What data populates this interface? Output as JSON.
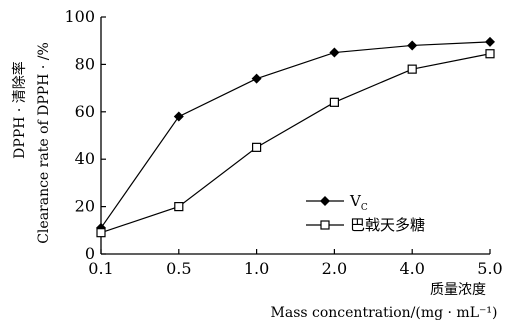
{
  "chart_data": {
    "type": "line",
    "categories": [
      "0.1",
      "0.5",
      "1.0",
      "2.0",
      "4.0",
      "5.0"
    ],
    "ylim": [
      0,
      100
    ],
    "yticks": [
      0,
      20,
      40,
      60,
      80,
      100
    ],
    "grid": false,
    "legend_position": "bottom-right",
    "xlabel_cn": "质量浓度",
    "xlabel_en": "Mass concentration/(mg · mL⁻¹)",
    "ylabel_cn": "DPPH · 清除率",
    "ylabel_en": "Clearance rate of DPPH · /%",
    "series": [
      {
        "name": "V",
        "name_sub": "C",
        "marker": "filled-diamond",
        "color": "#000000",
        "values": [
          11,
          58,
          74,
          85,
          88,
          89.5
        ]
      },
      {
        "name": "巴戟天多糖",
        "marker": "open-square",
        "color": "#000000",
        "values": [
          9,
          20,
          45,
          64,
          78,
          84.5
        ]
      }
    ]
  }
}
